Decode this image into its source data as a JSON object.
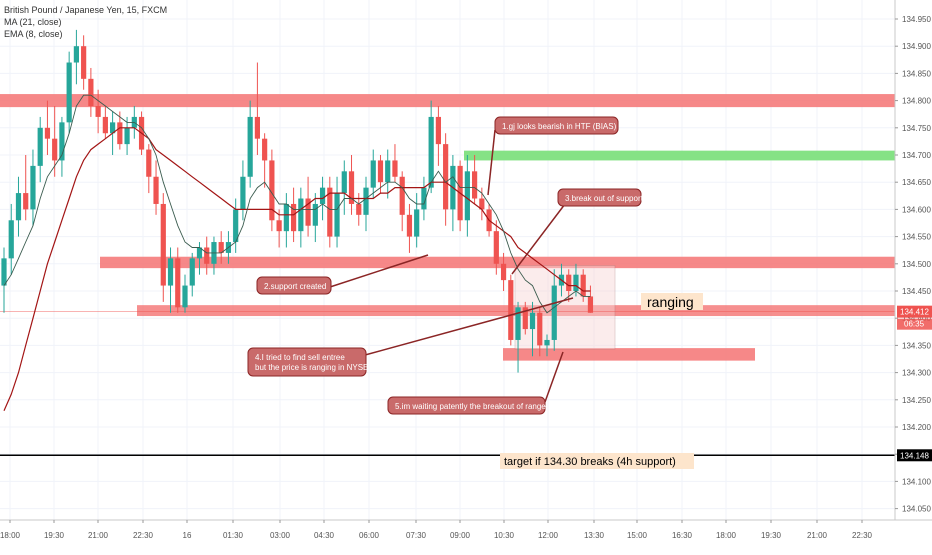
{
  "legend": {
    "symbol": "British Pound / Japanese Yen, 15, FXCM",
    "ma": "MA (21, close)",
    "ema": "EMA (8, close)"
  },
  "price_axis": {
    "ticks": [
      "134.950",
      "134.900",
      "134.850",
      "134.800",
      "134.750",
      "134.700",
      "134.650",
      "134.600",
      "134.550",
      "134.500",
      "134.450",
      "134.400",
      "134.350",
      "134.300",
      "134.250",
      "134.200",
      "134.150",
      "134.100",
      "134.050"
    ],
    "last_price": "134.412",
    "countdown": "06:35",
    "target_price": "134.148"
  },
  "time_axis": {
    "ticks": [
      "18:00",
      "19:30",
      "21:00",
      "22:30",
      "16",
      "01:30",
      "03:00",
      "04:30",
      "06:00",
      "07:30",
      "09:00",
      "10:30",
      "12:00",
      "13:30",
      "15:00",
      "16:30",
      "18:00",
      "19:30",
      "21:00",
      "22:30"
    ]
  },
  "annotations": {
    "a1": "1.gj looks bearish in HTF (BIAS)",
    "a2": "2.support created",
    "a3": "3.break out of support",
    "a4_line1": "4.I tried to find sell entree",
    "a4_line2": "but the price is ranging in NYSE",
    "a5": "5.im waiting patently the breakout of range",
    "ranging": "ranging",
    "target": "target if 134.30 breaks (4h support)"
  },
  "colors": {
    "bull": "#26a69a",
    "bear": "#ef5350",
    "zone": "#f47373",
    "green_zone": "#7ee07e",
    "ma": "#a31515",
    "ema": "#3b5c4f",
    "callout_fill": "#c96a6a",
    "callout_stroke": "#8b2525"
  },
  "chart_data": {
    "type": "candlestick",
    "title": "British Pound / Japanese Yen, 15, FXCM",
    "ylim": [
      134.02,
      134.97
    ],
    "xlim": [
      "18:00",
      "23:00"
    ],
    "grid": true,
    "candles_ohlc": [
      [
        134.46,
        134.53,
        134.41,
        134.51
      ],
      [
        134.51,
        134.61,
        134.48,
        134.58
      ],
      [
        134.58,
        134.66,
        134.55,
        134.63
      ],
      [
        134.63,
        134.7,
        134.58,
        134.6
      ],
      [
        134.6,
        134.71,
        134.57,
        134.68
      ],
      [
        134.68,
        134.77,
        134.65,
        134.75
      ],
      [
        134.75,
        134.8,
        134.7,
        134.73
      ],
      [
        134.73,
        134.79,
        134.66,
        134.69
      ],
      [
        134.69,
        134.77,
        134.66,
        134.76
      ],
      [
        134.76,
        134.89,
        134.74,
        134.87
      ],
      [
        134.87,
        134.93,
        134.83,
        134.9
      ],
      [
        134.9,
        134.92,
        134.82,
        134.84
      ],
      [
        134.84,
        134.86,
        134.77,
        134.79
      ],
      [
        134.79,
        134.82,
        134.74,
        134.77
      ],
      [
        134.77,
        134.79,
        134.73,
        134.74
      ],
      [
        134.74,
        134.78,
        134.7,
        134.76
      ],
      [
        134.76,
        134.78,
        134.71,
        134.72
      ],
      [
        134.72,
        134.77,
        134.7,
        134.75
      ],
      [
        134.75,
        134.79,
        134.73,
        134.77
      ],
      [
        134.77,
        134.78,
        134.7,
        134.71
      ],
      [
        134.71,
        134.72,
        134.63,
        134.66
      ],
      [
        134.66,
        134.69,
        134.59,
        134.61
      ],
      [
        134.61,
        134.63,
        134.43,
        134.46
      ],
      [
        134.46,
        134.53,
        134.41,
        134.51
      ],
      [
        134.51,
        134.53,
        134.41,
        134.42
      ],
      [
        134.42,
        134.48,
        134.41,
        134.46
      ],
      [
        134.46,
        134.52,
        134.44,
        134.51
      ],
      [
        134.51,
        134.54,
        134.48,
        134.53
      ],
      [
        134.53,
        134.55,
        134.48,
        134.5
      ],
      [
        134.5,
        134.55,
        134.48,
        134.54
      ],
      [
        134.54,
        134.56,
        134.5,
        134.52
      ],
      [
        134.52,
        134.56,
        134.5,
        134.54
      ],
      [
        134.54,
        134.62,
        134.52,
        134.6
      ],
      [
        134.6,
        134.69,
        134.58,
        134.66
      ],
      [
        134.66,
        134.8,
        134.64,
        134.77
      ],
      [
        134.77,
        134.87,
        134.7,
        134.73
      ],
      [
        134.73,
        134.74,
        134.64,
        134.69
      ],
      [
        134.69,
        134.71,
        134.56,
        134.58
      ],
      [
        134.58,
        134.6,
        134.53,
        134.56
      ],
      [
        134.56,
        134.63,
        134.53,
        134.61
      ],
      [
        134.61,
        134.64,
        134.54,
        134.56
      ],
      [
        134.56,
        134.64,
        134.53,
        134.62
      ],
      [
        134.62,
        134.66,
        134.55,
        134.57
      ],
      [
        134.57,
        134.63,
        134.54,
        134.61
      ],
      [
        134.61,
        134.66,
        134.58,
        134.64
      ],
      [
        134.64,
        134.66,
        134.53,
        134.55
      ],
      [
        134.55,
        134.66,
        134.53,
        134.63
      ],
      [
        134.63,
        134.69,
        134.59,
        134.67
      ],
      [
        134.67,
        134.7,
        134.59,
        134.61
      ],
      [
        134.61,
        134.63,
        134.57,
        134.59
      ],
      [
        134.59,
        134.66,
        134.56,
        134.64
      ],
      [
        134.64,
        134.71,
        134.62,
        134.69
      ],
      [
        134.69,
        134.7,
        134.63,
        134.65
      ],
      [
        134.65,
        134.71,
        134.62,
        134.69
      ],
      [
        134.69,
        134.72,
        134.65,
        134.66
      ],
      [
        134.66,
        134.67,
        134.56,
        134.59
      ],
      [
        134.59,
        134.61,
        134.52,
        134.55
      ],
      [
        134.55,
        134.63,
        134.53,
        134.6
      ],
      [
        134.6,
        134.66,
        134.58,
        134.64
      ],
      [
        134.64,
        134.8,
        134.63,
        134.77
      ],
      [
        134.77,
        134.79,
        134.68,
        134.72
      ],
      [
        134.72,
        134.74,
        134.57,
        134.6
      ],
      [
        134.6,
        134.7,
        134.56,
        134.68
      ],
      [
        134.68,
        134.69,
        134.56,
        134.58
      ],
      [
        134.58,
        134.7,
        134.55,
        134.67
      ],
      [
        134.67,
        134.7,
        134.61,
        134.62
      ],
      [
        134.62,
        134.64,
        134.58,
        134.6
      ],
      [
        134.6,
        134.61,
        134.55,
        134.56
      ],
      [
        134.56,
        134.58,
        134.48,
        134.5
      ],
      [
        134.5,
        134.52,
        134.45,
        134.47
      ],
      [
        134.47,
        134.48,
        134.35,
        134.36
      ],
      [
        134.36,
        134.43,
        134.3,
        134.42
      ],
      [
        134.42,
        134.43,
        134.37,
        134.38
      ],
      [
        134.38,
        134.43,
        134.33,
        134.41
      ],
      [
        134.41,
        134.42,
        134.33,
        134.35
      ],
      [
        134.35,
        134.37,
        134.33,
        134.36
      ],
      [
        134.36,
        134.49,
        134.34,
        134.46
      ],
      [
        134.46,
        134.5,
        134.44,
        134.48
      ],
      [
        134.48,
        134.49,
        134.43,
        134.45
      ],
      [
        134.45,
        134.5,
        134.44,
        134.48
      ],
      [
        134.48,
        134.49,
        134.43,
        134.44
      ],
      [
        134.44,
        134.46,
        134.41,
        134.41
      ]
    ],
    "series": [
      {
        "name": "MA (21, close)",
        "values": [
          134.23,
          134.26,
          134.3,
          134.35,
          134.4,
          134.45,
          134.5,
          134.54,
          134.58,
          134.62,
          134.66,
          134.69,
          134.71,
          134.72,
          134.73,
          134.74,
          134.75,
          134.75,
          134.75,
          134.74,
          134.73,
          134.71,
          134.7,
          134.69,
          134.68,
          134.67,
          134.66,
          134.65,
          134.64,
          134.63,
          134.62,
          134.61,
          134.6,
          134.6,
          134.6,
          134.6,
          134.6,
          134.6,
          134.59,
          134.59,
          134.59,
          134.6,
          134.61,
          134.62,
          134.62,
          134.63,
          134.63,
          134.63,
          134.62,
          134.62,
          134.62,
          134.62,
          134.63,
          134.63,
          134.64,
          134.64,
          134.64,
          134.64,
          134.64,
          134.65,
          134.65,
          134.65,
          134.64,
          134.63,
          134.62,
          134.61,
          134.6,
          134.58,
          134.57,
          134.56,
          134.55,
          134.53,
          134.52,
          134.51,
          134.5,
          134.49,
          134.48,
          134.47,
          134.46,
          134.46,
          134.45,
          134.45
        ]
      },
      {
        "name": "EMA (8, close)",
        "values": [
          134.46,
          134.48,
          134.51,
          134.54,
          134.57,
          134.62,
          134.66,
          134.68,
          134.7,
          134.74,
          134.79,
          134.81,
          134.81,
          134.8,
          134.79,
          134.78,
          134.77,
          134.76,
          134.76,
          134.75,
          134.73,
          134.7,
          134.65,
          134.61,
          134.57,
          134.54,
          134.53,
          134.53,
          134.52,
          134.52,
          134.52,
          134.53,
          134.54,
          134.57,
          134.62,
          134.64,
          134.65,
          134.63,
          134.61,
          134.61,
          134.6,
          134.6,
          134.6,
          134.6,
          134.61,
          134.6,
          134.6,
          134.62,
          134.62,
          134.61,
          134.62,
          134.63,
          134.64,
          134.65,
          134.65,
          134.64,
          134.62,
          134.61,
          134.61,
          134.65,
          134.67,
          134.65,
          134.66,
          134.64,
          134.64,
          134.64,
          134.63,
          134.61,
          134.59,
          134.56,
          134.52,
          134.49,
          134.47,
          134.46,
          134.43,
          134.41,
          134.42,
          134.43,
          134.44,
          134.45,
          134.44,
          134.44
        ]
      }
    ]
  }
}
